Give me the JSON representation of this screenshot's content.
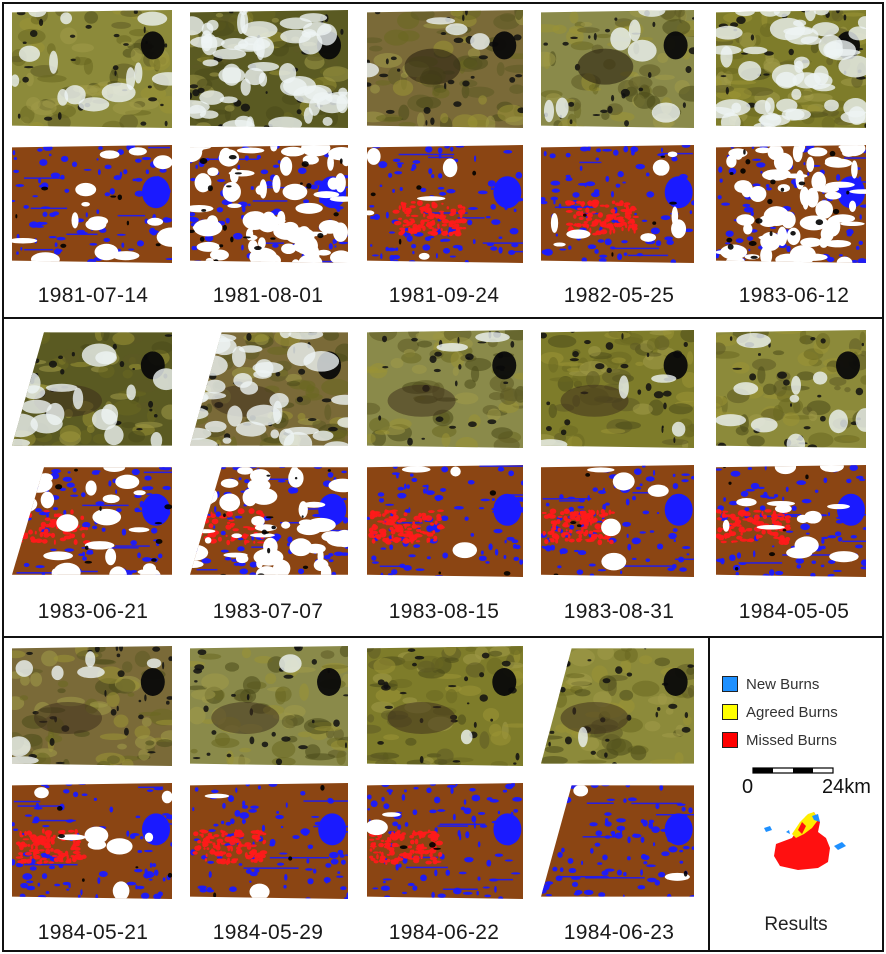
{
  "rows": [
    {
      "dates": [
        "1981-07-14",
        "1981-08-01",
        "1981-09-24",
        "1982-05-25",
        "1983-06-12"
      ]
    },
    {
      "dates": [
        "1983-06-21",
        "1983-07-07",
        "1983-08-15",
        "1983-08-31",
        "1984-05-05"
      ]
    },
    {
      "dates": [
        "1984-05-21",
        "1984-05-29",
        "1984-06-22",
        "1984-06-23"
      ]
    }
  ],
  "legend": {
    "items": [
      {
        "label": "New Burns",
        "color": "#1e90ff"
      },
      {
        "label": "Agreed Burns",
        "color": "#ffff00"
      },
      {
        "label": "Missed Burns",
        "color": "#ff0000"
      }
    ],
    "scale_start": "0",
    "scale_end": "24km",
    "results_label": "Results"
  },
  "colors": {
    "rgb_olive": "#8b8a2c",
    "classified_brown": "#8b4513",
    "water_blue": "#1a1aff",
    "missed_red": "#ff1a1a",
    "cloud_white": "#ffffff"
  }
}
